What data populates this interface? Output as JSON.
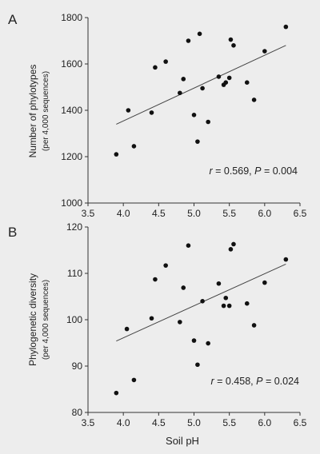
{
  "chart_data": [
    {
      "type": "scatter",
      "panel": "A",
      "ylabel": "Number of phylotypes",
      "ylabel_sub": "(per 4,000 sequences)",
      "xlim": [
        3.5,
        6.5
      ],
      "ylim": [
        1000,
        1800
      ],
      "x_ticks": [
        "3.5",
        "4.0",
        "4.5",
        "5.0",
        "5.5",
        "6.0",
        "6.5"
      ],
      "y_ticks": [
        "1000",
        "1200",
        "1400",
        "1600",
        "1800"
      ],
      "stat": {
        "r_label": "r",
        "r_value": " = 0.569, ",
        "p_label": "P",
        "p_value": " = 0.004"
      },
      "trendline": {
        "x": [
          3.9,
          6.3
        ],
        "y": [
          1340,
          1680
        ]
      },
      "points": [
        [
          3.9,
          1210
        ],
        [
          4.07,
          1400
        ],
        [
          4.15,
          1245
        ],
        [
          4.4,
          1390
        ],
        [
          4.45,
          1585
        ],
        [
          4.6,
          1610
        ],
        [
          4.8,
          1475
        ],
        [
          4.85,
          1535
        ],
        [
          4.92,
          1700
        ],
        [
          5.0,
          1380
        ],
        [
          5.05,
          1265
        ],
        [
          5.08,
          1730
        ],
        [
          5.12,
          1495
        ],
        [
          5.2,
          1350
        ],
        [
          5.35,
          1545
        ],
        [
          5.42,
          1510
        ],
        [
          5.45,
          1520
        ],
        [
          5.5,
          1540
        ],
        [
          5.52,
          1705
        ],
        [
          5.56,
          1680
        ],
        [
          5.75,
          1520
        ],
        [
          5.85,
          1445
        ],
        [
          6.0,
          1655
        ],
        [
          6.3,
          1760
        ]
      ]
    },
    {
      "type": "scatter",
      "panel": "B",
      "ylabel": "Phylogenetic diversity",
      "ylabel_sub": "(per 4,000 sequences)",
      "xlabel": "Soil pH",
      "xlim": [
        3.5,
        6.5
      ],
      "ylim": [
        80,
        120
      ],
      "x_ticks": [
        "3.5",
        "4.0",
        "4.5",
        "5.0",
        "5.5",
        "6.0",
        "6.5"
      ],
      "y_ticks": [
        "80",
        "90",
        "100",
        "110",
        "120"
      ],
      "stat": {
        "r_label": "r",
        "r_value": " = 0.458, ",
        "p_label": "P",
        "p_value": " = 0.024"
      },
      "trendline": {
        "x": [
          3.9,
          6.3
        ],
        "y": [
          95.4,
          112
        ]
      },
      "points": [
        [
          3.9,
          84.2
        ],
        [
          4.05,
          98
        ],
        [
          4.15,
          87
        ],
        [
          4.4,
          100.3
        ],
        [
          4.45,
          108.7
        ],
        [
          4.6,
          111.7
        ],
        [
          4.8,
          99.5
        ],
        [
          4.85,
          106.9
        ],
        [
          4.92,
          116
        ],
        [
          5.0,
          95.5
        ],
        [
          5.05,
          90.3
        ],
        [
          5.12,
          104
        ],
        [
          5.2,
          94.9
        ],
        [
          5.35,
          107.8
        ],
        [
          5.42,
          103
        ],
        [
          5.45,
          104.7
        ],
        [
          5.5,
          103
        ],
        [
          5.52,
          115.2
        ],
        [
          5.56,
          116.3
        ],
        [
          5.75,
          103.5
        ],
        [
          5.85,
          98.8
        ],
        [
          6.0,
          108
        ],
        [
          6.3,
          113
        ]
      ]
    }
  ]
}
